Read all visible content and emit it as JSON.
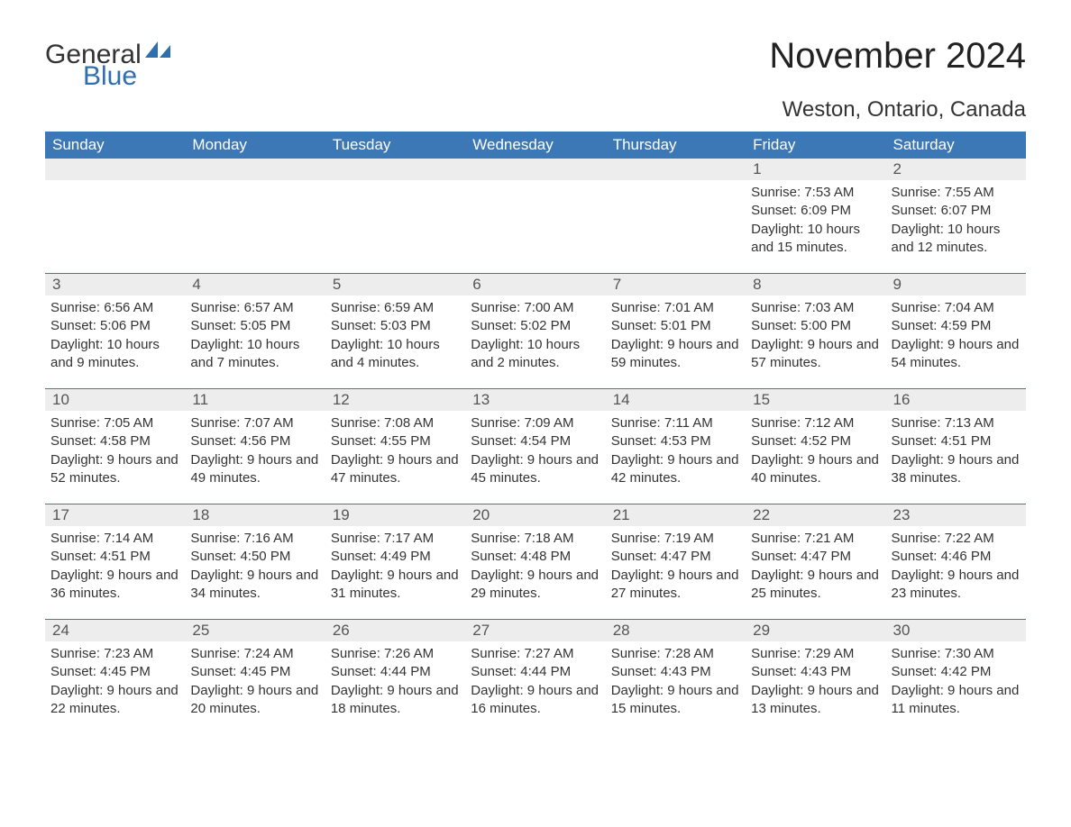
{
  "logo": {
    "text_general": "General",
    "text_blue": "Blue",
    "icon_color": "#2f6fad"
  },
  "title": "November 2024",
  "location": "Weston, Ontario, Canada",
  "colors": {
    "header_bg": "#3b78b5",
    "header_text": "#ffffff",
    "daynum_bg": "#ededed",
    "row_border": "#3b78b5",
    "body_text": "#333333",
    "logo_blue": "#2f6fad"
  },
  "typography": {
    "title_fontsize": 40,
    "location_fontsize": 24,
    "header_fontsize": 17,
    "cell_fontsize": 15
  },
  "calendar": {
    "type": "table",
    "columns": [
      "Sunday",
      "Monday",
      "Tuesday",
      "Wednesday",
      "Thursday",
      "Friday",
      "Saturday"
    ],
    "start_day_index": 5,
    "days": [
      {
        "n": 1,
        "sunrise": "7:53 AM",
        "sunset": "6:09 PM",
        "daylight": "10 hours and 15 minutes."
      },
      {
        "n": 2,
        "sunrise": "7:55 AM",
        "sunset": "6:07 PM",
        "daylight": "10 hours and 12 minutes."
      },
      {
        "n": 3,
        "sunrise": "6:56 AM",
        "sunset": "5:06 PM",
        "daylight": "10 hours and 9 minutes."
      },
      {
        "n": 4,
        "sunrise": "6:57 AM",
        "sunset": "5:05 PM",
        "daylight": "10 hours and 7 minutes."
      },
      {
        "n": 5,
        "sunrise": "6:59 AM",
        "sunset": "5:03 PM",
        "daylight": "10 hours and 4 minutes."
      },
      {
        "n": 6,
        "sunrise": "7:00 AM",
        "sunset": "5:02 PM",
        "daylight": "10 hours and 2 minutes."
      },
      {
        "n": 7,
        "sunrise": "7:01 AM",
        "sunset": "5:01 PM",
        "daylight": "9 hours and 59 minutes."
      },
      {
        "n": 8,
        "sunrise": "7:03 AM",
        "sunset": "5:00 PM",
        "daylight": "9 hours and 57 minutes."
      },
      {
        "n": 9,
        "sunrise": "7:04 AM",
        "sunset": "4:59 PM",
        "daylight": "9 hours and 54 minutes."
      },
      {
        "n": 10,
        "sunrise": "7:05 AM",
        "sunset": "4:58 PM",
        "daylight": "9 hours and 52 minutes."
      },
      {
        "n": 11,
        "sunrise": "7:07 AM",
        "sunset": "4:56 PM",
        "daylight": "9 hours and 49 minutes."
      },
      {
        "n": 12,
        "sunrise": "7:08 AM",
        "sunset": "4:55 PM",
        "daylight": "9 hours and 47 minutes."
      },
      {
        "n": 13,
        "sunrise": "7:09 AM",
        "sunset": "4:54 PM",
        "daylight": "9 hours and 45 minutes."
      },
      {
        "n": 14,
        "sunrise": "7:11 AM",
        "sunset": "4:53 PM",
        "daylight": "9 hours and 42 minutes."
      },
      {
        "n": 15,
        "sunrise": "7:12 AM",
        "sunset": "4:52 PM",
        "daylight": "9 hours and 40 minutes."
      },
      {
        "n": 16,
        "sunrise": "7:13 AM",
        "sunset": "4:51 PM",
        "daylight": "9 hours and 38 minutes."
      },
      {
        "n": 17,
        "sunrise": "7:14 AM",
        "sunset": "4:51 PM",
        "daylight": "9 hours and 36 minutes."
      },
      {
        "n": 18,
        "sunrise": "7:16 AM",
        "sunset": "4:50 PM",
        "daylight": "9 hours and 34 minutes."
      },
      {
        "n": 19,
        "sunrise": "7:17 AM",
        "sunset": "4:49 PM",
        "daylight": "9 hours and 31 minutes."
      },
      {
        "n": 20,
        "sunrise": "7:18 AM",
        "sunset": "4:48 PM",
        "daylight": "9 hours and 29 minutes."
      },
      {
        "n": 21,
        "sunrise": "7:19 AM",
        "sunset": "4:47 PM",
        "daylight": "9 hours and 27 minutes."
      },
      {
        "n": 22,
        "sunrise": "7:21 AM",
        "sunset": "4:47 PM",
        "daylight": "9 hours and 25 minutes."
      },
      {
        "n": 23,
        "sunrise": "7:22 AM",
        "sunset": "4:46 PM",
        "daylight": "9 hours and 23 minutes."
      },
      {
        "n": 24,
        "sunrise": "7:23 AM",
        "sunset": "4:45 PM",
        "daylight": "9 hours and 22 minutes."
      },
      {
        "n": 25,
        "sunrise": "7:24 AM",
        "sunset": "4:45 PM",
        "daylight": "9 hours and 20 minutes."
      },
      {
        "n": 26,
        "sunrise": "7:26 AM",
        "sunset": "4:44 PM",
        "daylight": "9 hours and 18 minutes."
      },
      {
        "n": 27,
        "sunrise": "7:27 AM",
        "sunset": "4:44 PM",
        "daylight": "9 hours and 16 minutes."
      },
      {
        "n": 28,
        "sunrise": "7:28 AM",
        "sunset": "4:43 PM",
        "daylight": "9 hours and 15 minutes."
      },
      {
        "n": 29,
        "sunrise": "7:29 AM",
        "sunset": "4:43 PM",
        "daylight": "9 hours and 13 minutes."
      },
      {
        "n": 30,
        "sunrise": "7:30 AM",
        "sunset": "4:42 PM",
        "daylight": "9 hours and 11 minutes."
      }
    ],
    "labels": {
      "sunrise": "Sunrise:",
      "sunset": "Sunset:",
      "daylight": "Daylight:"
    }
  }
}
